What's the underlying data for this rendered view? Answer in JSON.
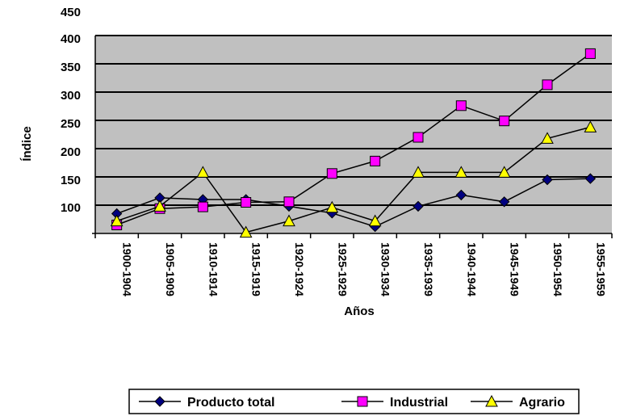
{
  "chart_data": {
    "type": "line",
    "title": "",
    "xlabel": "Años",
    "ylabel": "Índice",
    "ylim": [
      50,
      400
    ],
    "y_ticks": [
      "100",
      "150",
      "200",
      "250",
      "300",
      "350",
      "400",
      "450"
    ],
    "grid": "horizontal",
    "legend_position": "bottom",
    "plot_background": "#c0c0c0",
    "categories": [
      "1900-1904",
      "1905-1909",
      "1910-1914",
      "1915-1919",
      "1920-1924",
      "1925-1929",
      "1930-1934",
      "1935-1939",
      "1940-1944",
      "1945-1949",
      "1950-1954",
      "1955-1959"
    ],
    "series": [
      {
        "name": "Producto total",
        "marker": "diamond",
        "color": "#000080",
        "values": [
          85,
          113,
          110,
          110,
          98,
          86,
          62,
          98,
          118,
          106,
          145,
          147
        ]
      },
      {
        "name": "Industrial",
        "marker": "square",
        "color": "#ff00ff",
        "values": [
          65,
          94,
          97,
          105,
          106,
          156,
          178,
          220,
          276,
          249,
          313,
          368
        ]
      },
      {
        "name": "Agrario",
        "marker": "triangle",
        "color": "#ffff00",
        "values": [
          72,
          98,
          158,
          52,
          72,
          96,
          72,
          158,
          158,
          158,
          218,
          238
        ]
      }
    ]
  }
}
